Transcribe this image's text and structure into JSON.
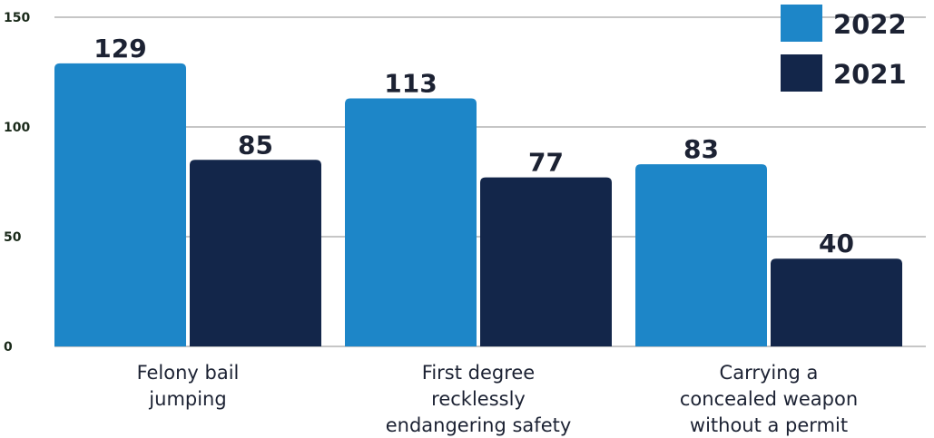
{
  "chart_data": {
    "type": "bar",
    "categories": [
      [
        "Felony bail",
        "jumping"
      ],
      [
        "First degree",
        "recklessly",
        "endangering safety"
      ],
      [
        "Carrying a",
        "concealed weapon",
        "without a permit"
      ]
    ],
    "series": [
      {
        "name": "2022",
        "color": "#1d86c8",
        "values": [
          129,
          113,
          83
        ]
      },
      {
        "name": "2021",
        "color": "#13264a",
        "values": [
          85,
          77,
          40
        ]
      }
    ],
    "yticks": [
      0,
      50,
      100,
      150
    ],
    "ylim": [
      0,
      150
    ],
    "grid": true,
    "legend_position": "top-right",
    "title": "",
    "xlabel": "",
    "ylabel": ""
  }
}
